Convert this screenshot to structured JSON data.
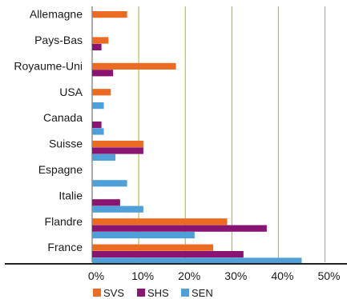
{
  "chart_data": {
    "type": "bar",
    "orientation": "horizontal",
    "title": "",
    "xlabel": "",
    "ylabel": "",
    "categories": [
      "Allemagne",
      "Pays-Bas",
      "Royaume-Uni",
      "USA",
      "Canada",
      "Suisse",
      "Espagne",
      "Italie",
      "Flandre",
      "France"
    ],
    "series": [
      {
        "name": "SVS",
        "color": "#ec6b23",
        "values": [
          7.5,
          3.5,
          18.0,
          4.0,
          0,
          11.0,
          0,
          0,
          29.0,
          26.0
        ]
      },
      {
        "name": "SHS",
        "color": "#8a1472",
        "values": [
          0,
          2.0,
          4.5,
          0,
          2.0,
          11.0,
          0,
          6.0,
          37.5,
          32.5
        ]
      },
      {
        "name": "SEN",
        "color": "#4f9fd8",
        "values": [
          0,
          0,
          0,
          2.5,
          2.5,
          5.0,
          7.5,
          11.0,
          22.0,
          45.0
        ]
      }
    ],
    "xlim": [
      0,
      50
    ],
    "xticks": [
      0,
      10,
      20,
      30,
      40,
      50
    ],
    "xtick_labels": [
      "0%",
      "10%",
      "20%",
      "30%",
      "40%",
      "50%"
    ],
    "grid": "vertical",
    "grid_color": "#a3b81f",
    "legend_position": "bottom"
  }
}
